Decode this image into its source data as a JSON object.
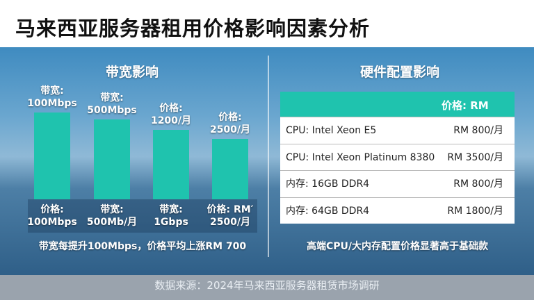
{
  "header": {
    "title": "马来西亚服务器租用价格影响因素分析"
  },
  "bandwidth": {
    "title": "带宽影响",
    "bars": [
      {
        "top_label": [
          "带宽:",
          "100Mbps"
        ],
        "bottom_label": [
          "价格:",
          "100Mbps"
        ]
      },
      {
        "top_label": [
          "带宽:",
          "500Mbps"
        ],
        "bottom_label": [
          "带宽:",
          "500Mb/月"
        ]
      },
      {
        "top_label": [
          "价格:",
          "1200/月"
        ],
        "bottom_label": [
          "带宽:",
          "1Gbps"
        ]
      },
      {
        "top_label": [
          "价格:",
          "2500/月"
        ],
        "bottom_label": [
          "价格:  RM′",
          "2500/月"
        ]
      }
    ],
    "note": "带宽每提升100Mbps，价格平均上涨RM 700"
  },
  "hardware": {
    "title": "硬件配置影响",
    "table": {
      "header": "价格:  RM",
      "rows": [
        [
          "CPU:  Intel Xeon E5",
          "RM 800/月"
        ],
        [
          "CPU:  Intel Xeon Platinum 8380",
          "RM 3500/月"
        ],
        [
          "内存:  16GB DDR4",
          "RM 800/月"
        ],
        [
          "内存:  64GB DDR4",
          "RM 1800/月"
        ]
      ]
    },
    "note": "高端CPU/大内存配置价格显著高于基础款"
  },
  "footer": {
    "source": "数据来源：2024年马来西亚服务器租赁市场调研"
  }
}
